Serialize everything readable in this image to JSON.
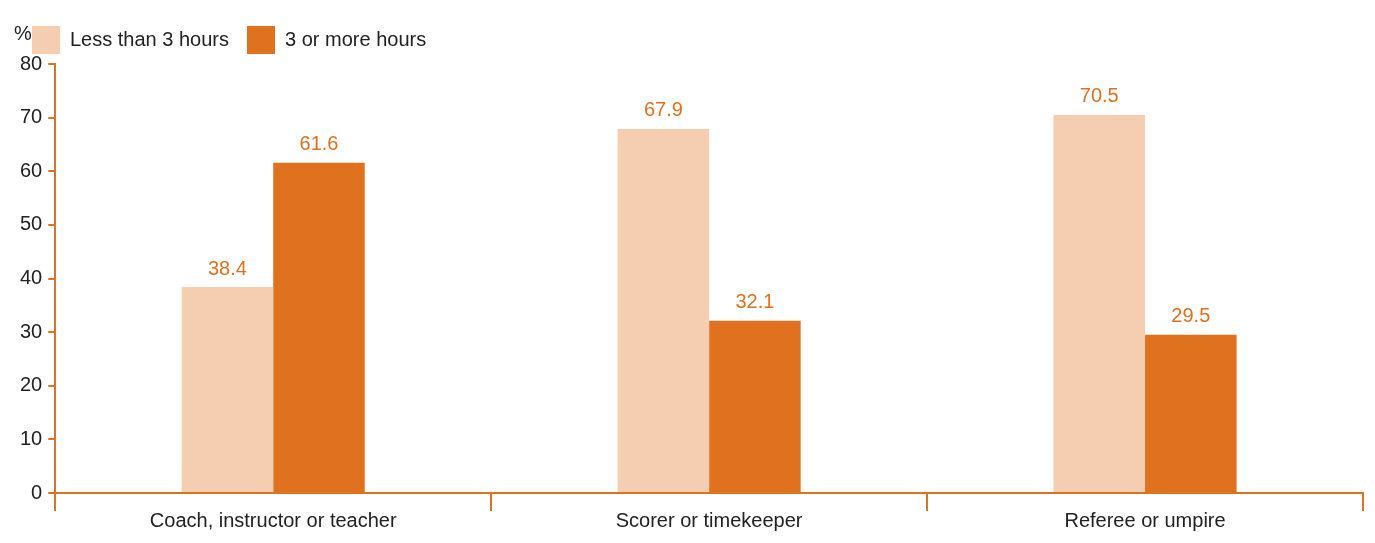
{
  "chart_data": {
    "type": "bar",
    "ylabel": "%",
    "categories": [
      "Coach, instructor or teacher",
      "Scorer or timekeeper",
      "Referee or umpire"
    ],
    "series": [
      {
        "name": "Less than 3 hours",
        "color": "#f5cdb0",
        "values": [
          38.4,
          67.9,
          70.5
        ]
      },
      {
        "name": "3 or more hours",
        "color": "#e0711f",
        "values": [
          61.6,
          32.1,
          29.5
        ]
      }
    ],
    "ylim": [
      0,
      80
    ],
    "yticks": [
      0,
      10,
      20,
      30,
      40,
      50,
      60,
      70,
      80
    ],
    "data_labels": true,
    "legend": "top left"
  }
}
